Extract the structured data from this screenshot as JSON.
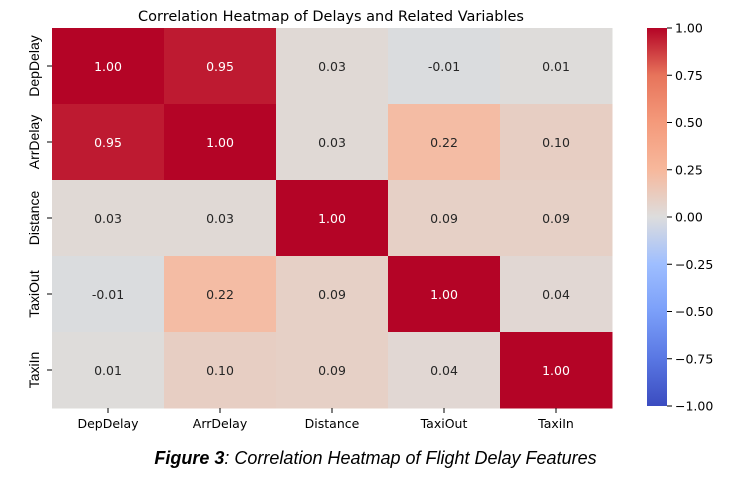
{
  "chart_data": {
    "type": "heatmap",
    "title": "Correlation Heatmap of Delays and Related Variables",
    "rows": [
      "DepDelay",
      "ArrDelay",
      "Distance",
      "TaxiOut",
      "TaxiIn"
    ],
    "columns": [
      "DepDelay",
      "ArrDelay",
      "Distance",
      "TaxiOut",
      "TaxiIn"
    ],
    "values": [
      [
        1.0,
        0.95,
        0.03,
        -0.01,
        0.01
      ],
      [
        0.95,
        1.0,
        0.03,
        0.22,
        0.1
      ],
      [
        0.03,
        0.03,
        1.0,
        0.09,
        0.09
      ],
      [
        -0.01,
        0.22,
        0.09,
        1.0,
        0.04
      ],
      [
        0.01,
        0.1,
        0.09,
        0.04,
        1.0
      ]
    ],
    "colorbar": {
      "range": [
        -1.0,
        1.0
      ],
      "ticks": [
        1.0,
        0.75,
        0.5,
        0.25,
        0.0,
        -0.25,
        -0.5,
        -0.75,
        -1.0
      ],
      "tick_labels": [
        "1.00",
        "0.75",
        "0.50",
        "0.25",
        "0.00",
        "−0.25",
        "−0.50",
        "−0.75",
        "−1.00"
      ],
      "colormap": "coolwarm",
      "low_color": "#3b4cc0",
      "mid_color": "#dddddd",
      "high_color": "#b40426"
    }
  },
  "caption": {
    "label": "Figure 3",
    "text": ": Correlation Heatmap of Flight Delay Features"
  }
}
